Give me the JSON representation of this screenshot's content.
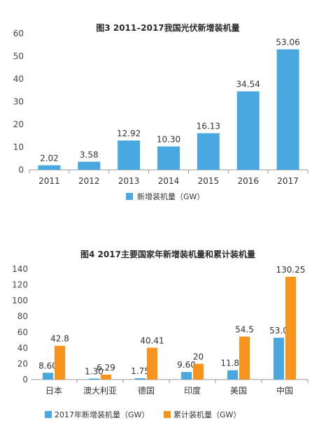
{
  "colors": {
    "blue": "#4aa8e0",
    "orange": "#f7941d",
    "axis": "#999999"
  },
  "chart_data": [
    {
      "type": "bar",
      "title": "图3 2011–2017我国光伏新增装机量",
      "categories": [
        "2011",
        "2012",
        "2013",
        "2014",
        "2015",
        "2016",
        "2017"
      ],
      "series": [
        {
          "name": "新增装机量（GW）",
          "values": [
            2.02,
            3.58,
            12.92,
            10.3,
            16.13,
            34.54,
            53.06
          ],
          "labels": [
            "2.02",
            "3.58",
            "12.92",
            "10.30",
            "16.13",
            "34.54",
            "53.06"
          ]
        }
      ],
      "ylim": [
        0,
        60
      ],
      "yticks": [
        0,
        10,
        20,
        30,
        40,
        50,
        60
      ],
      "legend": "bottom",
      "grid": false
    },
    {
      "type": "bar",
      "title": "图4 2017主要国家年新增装机量和累计装机量",
      "categories": [
        "日本",
        "澳大利亚",
        "德国",
        "印度",
        "美国",
        "中国"
      ],
      "series": [
        {
          "name": "2017年新增装机量（GW）",
          "values": [
            8.6,
            1.3,
            1.75,
            9.6,
            11.8,
            53.0
          ],
          "labels": [
            "8.60",
            "1.30",
            "1.75",
            "9.60",
            "11.80",
            "53.0"
          ]
        },
        {
          "name": "累计装机量（GW）",
          "values": [
            42.8,
            6.29,
            40.41,
            20,
            54.5,
            130.25
          ],
          "labels": [
            "42.8",
            "6.29",
            "40.41",
            "20",
            "54.5",
            "130.25"
          ]
        }
      ],
      "ylim": [
        0,
        140
      ],
      "yticks": [
        0,
        20,
        40,
        60,
        80,
        100,
        120,
        140
      ],
      "legend": "bottom",
      "grid": false
    }
  ]
}
